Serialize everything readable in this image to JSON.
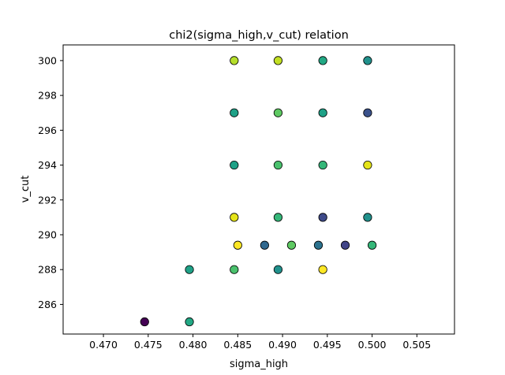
{
  "chart_data": {
    "type": "scatter",
    "title": "chi2(sigma_high,v_cut) relation",
    "xlabel": "sigma_high",
    "ylabel": "v_cut",
    "xlim": [
      0.4655,
      0.5092
    ],
    "ylim": [
      284.3,
      300.9
    ],
    "xticks": [
      0.47,
      0.475,
      0.48,
      0.485,
      0.49,
      0.495,
      0.5,
      0.505
    ],
    "xtick_labels": [
      "0.470",
      "0.475",
      "0.480",
      "0.485",
      "0.490",
      "0.495",
      "0.500",
      "0.505"
    ],
    "yticks": [
      286,
      288,
      290,
      292,
      294,
      296,
      298,
      300
    ],
    "ytick_labels": [
      "286",
      "288",
      "290",
      "292",
      "294",
      "296",
      "298",
      "300"
    ],
    "grid": false,
    "colormap": "viridis",
    "points": [
      {
        "x": 0.4846,
        "y": 300,
        "color": "#b5de2b"
      },
      {
        "x": 0.4895,
        "y": 300,
        "color": "#c2df23"
      },
      {
        "x": 0.4945,
        "y": 300,
        "color": "#22a884"
      },
      {
        "x": 0.4995,
        "y": 300,
        "color": "#21918c"
      },
      {
        "x": 0.4846,
        "y": 297,
        "color": "#1fa187"
      },
      {
        "x": 0.4895,
        "y": 297,
        "color": "#5ec962"
      },
      {
        "x": 0.4945,
        "y": 297,
        "color": "#1fa187"
      },
      {
        "x": 0.4995,
        "y": 297,
        "color": "#3b528b"
      },
      {
        "x": 0.4846,
        "y": 294,
        "color": "#1fa187"
      },
      {
        "x": 0.4895,
        "y": 294,
        "color": "#4ac16d"
      },
      {
        "x": 0.4945,
        "y": 294,
        "color": "#35b779"
      },
      {
        "x": 0.4995,
        "y": 294,
        "color": "#e5e419"
      },
      {
        "x": 0.4846,
        "y": 291,
        "color": "#e5e419"
      },
      {
        "x": 0.4895,
        "y": 291,
        "color": "#35b779"
      },
      {
        "x": 0.4945,
        "y": 291,
        "color": "#3e4a89"
      },
      {
        "x": 0.4995,
        "y": 291,
        "color": "#21918c"
      },
      {
        "x": 0.485,
        "y": 289.4,
        "color": "#fde725"
      },
      {
        "x": 0.488,
        "y": 289.4,
        "color": "#31688e"
      },
      {
        "x": 0.491,
        "y": 289.4,
        "color": "#5ec962"
      },
      {
        "x": 0.494,
        "y": 289.4,
        "color": "#2c728e"
      },
      {
        "x": 0.497,
        "y": 289.4,
        "color": "#414487"
      },
      {
        "x": 0.5,
        "y": 289.4,
        "color": "#35b779"
      },
      {
        "x": 0.4796,
        "y": 288,
        "color": "#1fa187"
      },
      {
        "x": 0.4846,
        "y": 288,
        "color": "#4ac16d"
      },
      {
        "x": 0.4895,
        "y": 288,
        "color": "#21918c"
      },
      {
        "x": 0.4945,
        "y": 288,
        "color": "#fde725"
      },
      {
        "x": 0.4746,
        "y": 285,
        "color": "#440154"
      },
      {
        "x": 0.4796,
        "y": 285,
        "color": "#22a884"
      }
    ]
  }
}
